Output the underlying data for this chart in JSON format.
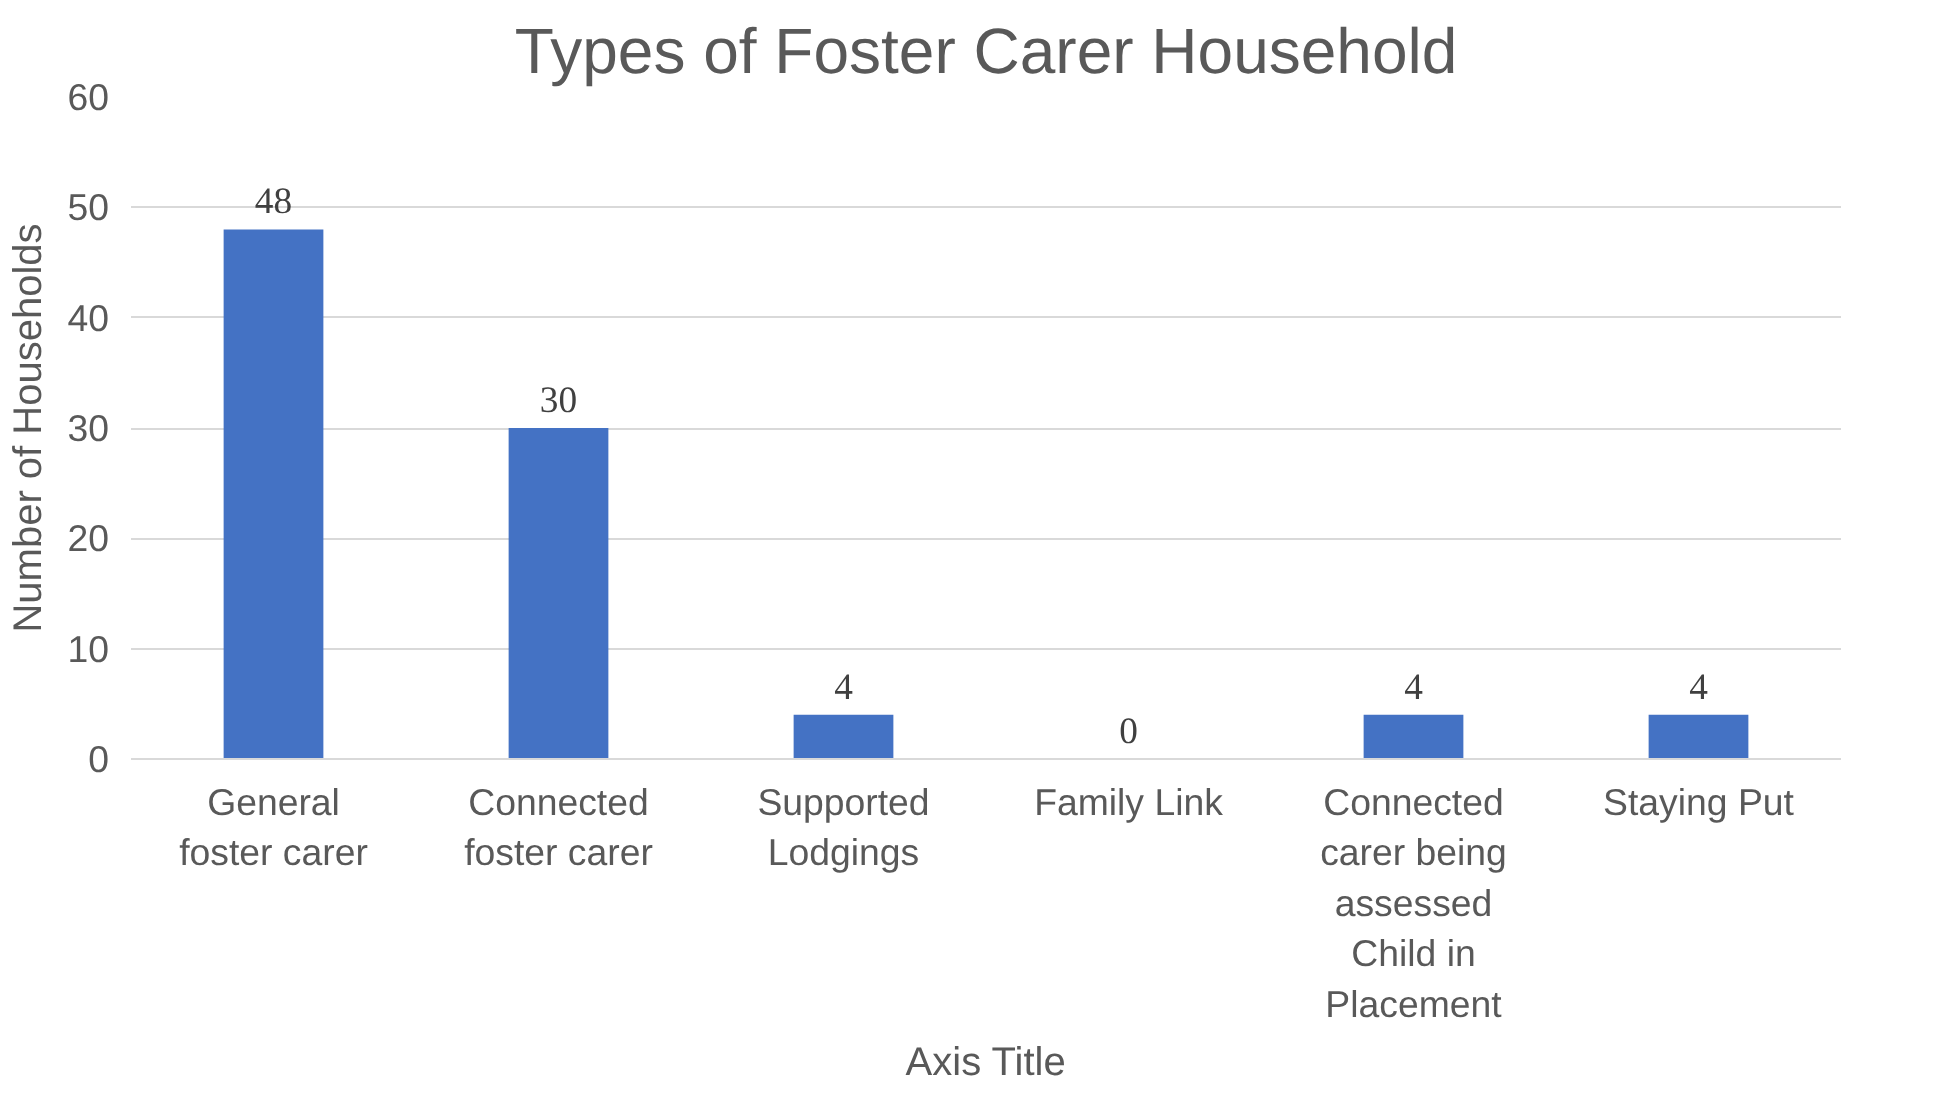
{
  "chart_data": {
    "type": "bar",
    "title": "Types of Foster Carer Household",
    "xlabel": "Axis Title",
    "ylabel": "Number of Households",
    "categories": [
      "General foster carer",
      "Connected foster carer",
      "Supported Lodgings",
      "Family Link",
      "Connected carer being assessed Child in Placement",
      "Staying Put"
    ],
    "values": [
      48,
      30,
      4,
      0,
      4,
      4
    ],
    "color": "#4472c4",
    "ylim": [
      0,
      60
    ],
    "yticks": [
      0,
      10,
      20,
      30,
      40,
      50,
      60
    ],
    "grid": "y",
    "data_labels": true
  }
}
